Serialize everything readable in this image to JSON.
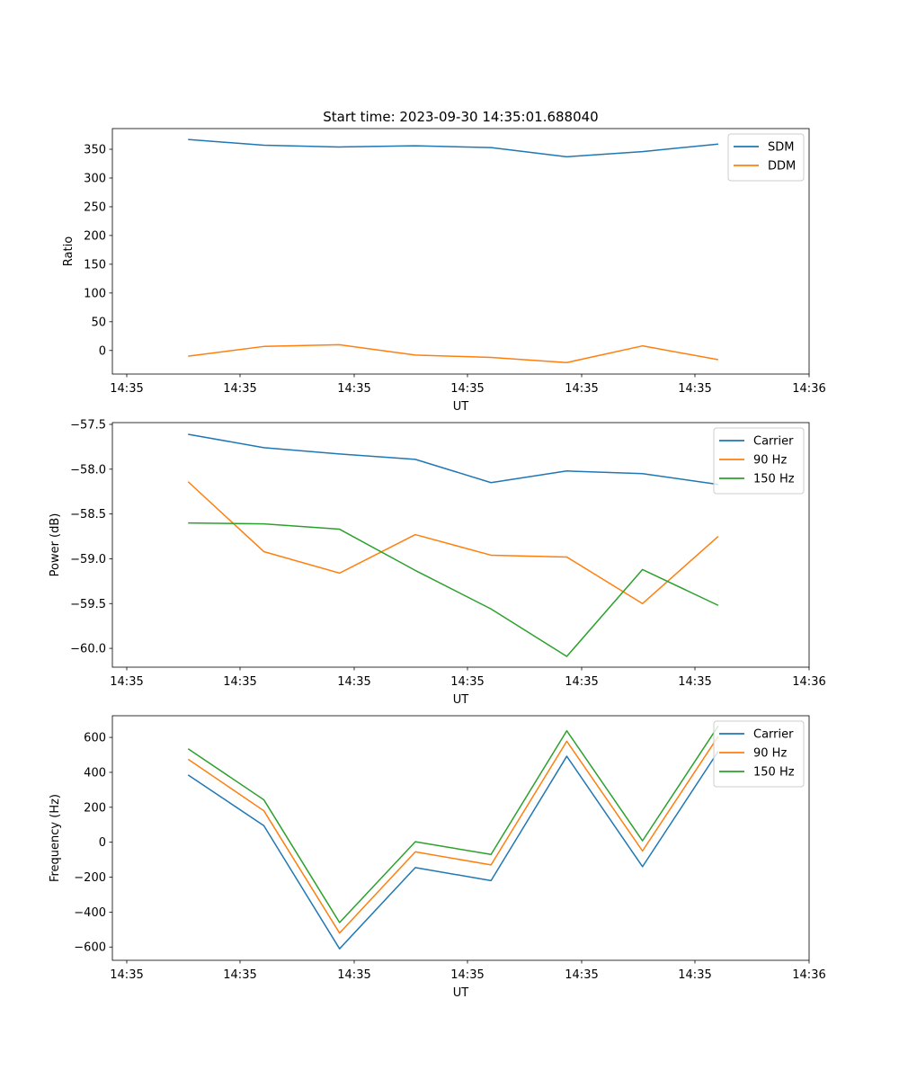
{
  "figure_title": "Start time: 2023-09-30 14:35:01.688040",
  "colors": {
    "blue": "#1f77b4",
    "orange": "#ff7f0e",
    "green": "#2ca02c"
  },
  "chart_data": [
    {
      "type": "line",
      "title": "Start time: 2023-09-30 14:35:01.688040",
      "xlabel": "UT",
      "ylabel": "Ratio",
      "xticks": [
        "14:35",
        "14:35",
        "14:35",
        "14:35",
        "14:35",
        "14:35",
        "14:36"
      ],
      "x": [
        1,
        2,
        3,
        4,
        5,
        6,
        7,
        8
      ],
      "xlim": [
        0,
        9.2
      ],
      "ylim": [
        -41,
        386
      ],
      "yticks": [
        350,
        300,
        250,
        200,
        150,
        100,
        50,
        0
      ],
      "legend_position": "upper-right",
      "series": [
        {
          "name": "SDM",
          "color": "#1f77b4",
          "values": [
            367,
            357,
            354,
            356,
            353,
            337,
            346,
            359
          ]
        },
        {
          "name": "DDM",
          "color": "#ff7f0e",
          "values": [
            -10,
            7,
            10,
            -8,
            -12,
            -21,
            8,
            -16
          ]
        }
      ]
    },
    {
      "type": "line",
      "xlabel": "UT",
      "ylabel": "Power (dB)",
      "xticks": [
        "14:35",
        "14:35",
        "14:35",
        "14:35",
        "14:35",
        "14:35",
        "14:36"
      ],
      "x": [
        1,
        2,
        3,
        4,
        5,
        6,
        7,
        8
      ],
      "xlim": [
        0,
        9.2
      ],
      "ylim": [
        -60.21,
        -57.48
      ],
      "yticks": [
        -57.5,
        -58.0,
        -58.5,
        -59.0,
        -59.5,
        -60.0
      ],
      "ytick_labels": [
        "−57.5",
        "−58.0",
        "−58.5",
        "−59.0",
        "−59.5",
        "−60.0"
      ],
      "legend_position": "upper-right",
      "series": [
        {
          "name": "Carrier",
          "color": "#1f77b4",
          "values": [
            -57.61,
            -57.76,
            -57.83,
            -57.89,
            -58.15,
            -58.02,
            -58.05,
            -58.17
          ]
        },
        {
          "name": "90 Hz",
          "color": "#ff7f0e",
          "values": [
            -58.14,
            -58.92,
            -59.16,
            -58.73,
            -58.96,
            -58.98,
            -59.5,
            -58.75
          ]
        },
        {
          "name": "150 Hz",
          "color": "#2ca02c",
          "values": [
            -58.6,
            -58.61,
            -58.67,
            -59.13,
            -59.56,
            -60.09,
            -59.12,
            -59.52
          ]
        }
      ]
    },
    {
      "type": "line",
      "xlabel": "UT",
      "ylabel": "Frequency (Hz)",
      "xticks": [
        "14:35",
        "14:35",
        "14:35",
        "14:35",
        "14:35",
        "14:35",
        "14:36"
      ],
      "x": [
        1,
        2,
        3,
        4,
        5,
        6,
        7,
        8
      ],
      "xlim": [
        0,
        9.2
      ],
      "ylim": [
        -676,
        724
      ],
      "yticks": [
        600,
        400,
        200,
        0,
        -200,
        -400,
        -600
      ],
      "ytick_labels": [
        "600",
        "400",
        "200",
        "0",
        "−200",
        "−400",
        "−600"
      ],
      "legend_position": "upper-right",
      "series": [
        {
          "name": "Carrier",
          "color": "#1f77b4",
          "values": [
            385,
            95,
            -610,
            -145,
            -220,
            492,
            -140,
            520
          ]
        },
        {
          "name": "90 Hz",
          "color": "#ff7f0e",
          "values": [
            475,
            180,
            -520,
            -55,
            -130,
            578,
            -50,
            606
          ]
        },
        {
          "name": "150 Hz",
          "color": "#2ca02c",
          "values": [
            535,
            243,
            -460,
            3,
            -70,
            638,
            8,
            665
          ]
        }
      ]
    }
  ]
}
